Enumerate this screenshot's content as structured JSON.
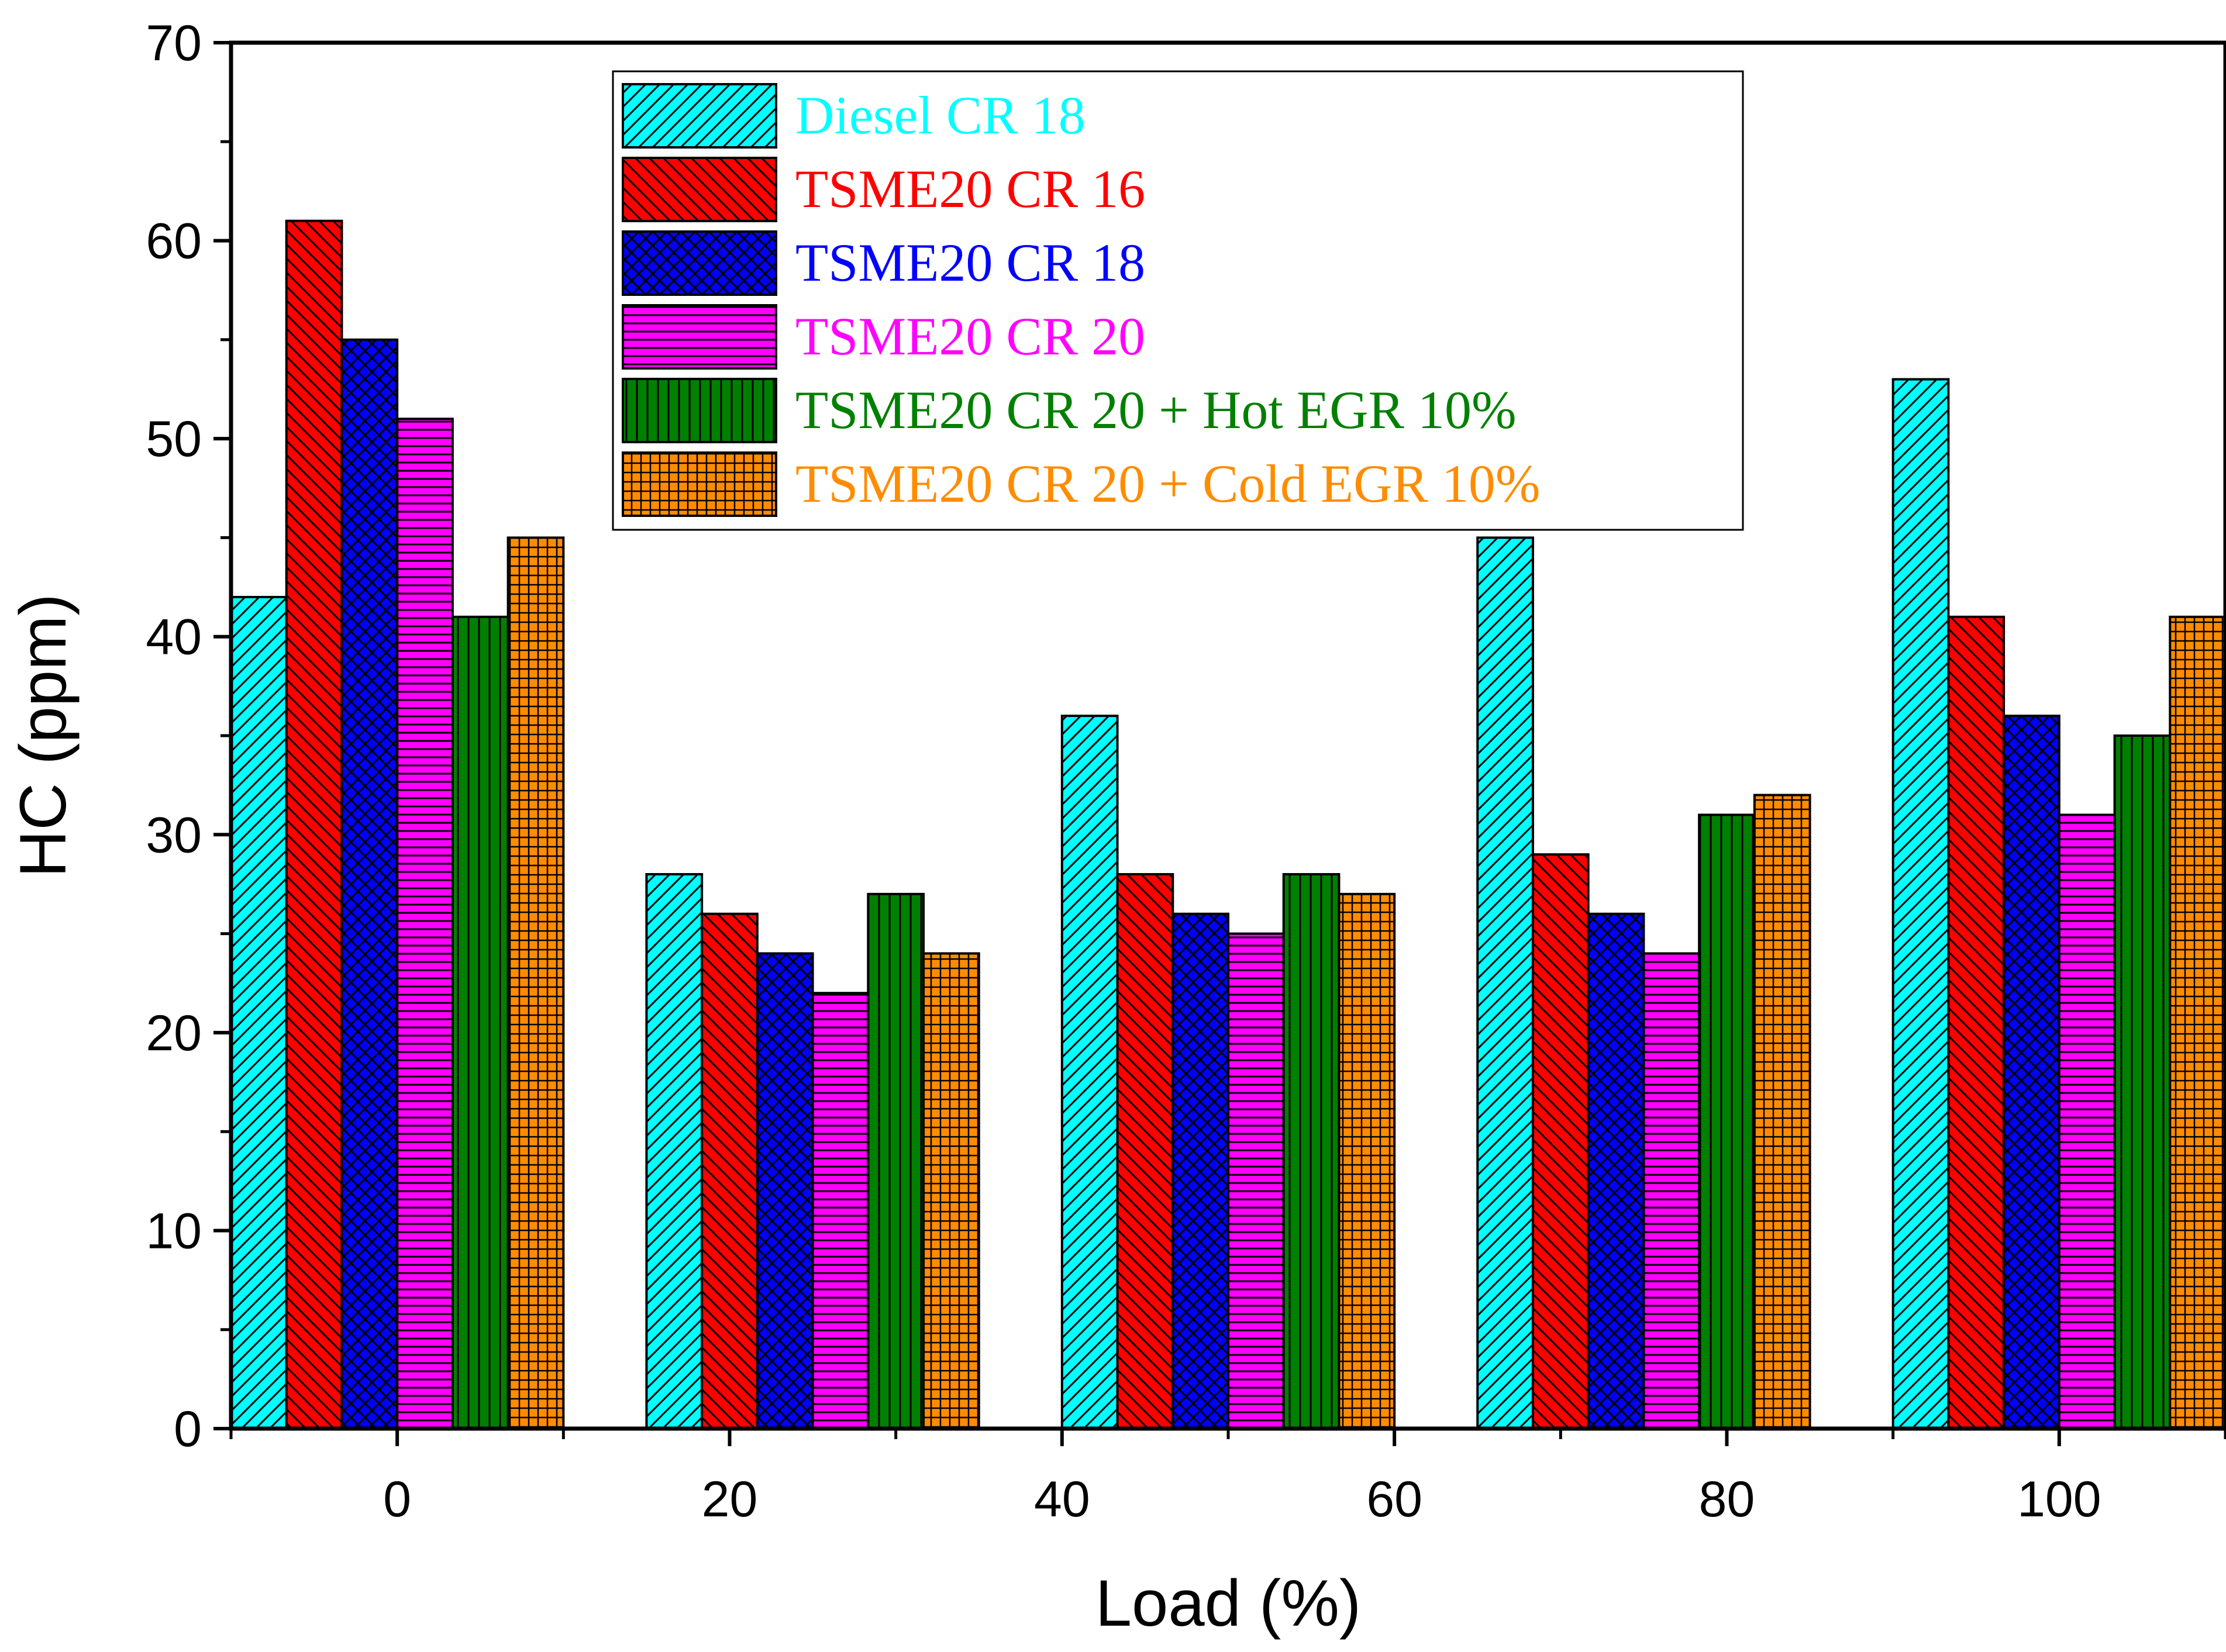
{
  "chart_data": {
    "type": "bar",
    "xlabel": "Load (%)",
    "ylabel": "HC (ppm)",
    "ylim": [
      0,
      70
    ],
    "yticks": [
      0,
      10,
      20,
      30,
      40,
      50,
      60,
      70
    ],
    "xlim": [
      -10,
      110
    ],
    "xticks": [
      0,
      20,
      40,
      60,
      80,
      100
    ],
    "categories": [
      0,
      25,
      50,
      75,
      100
    ],
    "legend_position": "top-right",
    "series": [
      {
        "name": "Diesel CR 18",
        "color": "#00ffff",
        "pattern": "diag-right",
        "values": [
          42,
          28,
          36,
          45,
          53
        ]
      },
      {
        "name": "TSME20 CR 16",
        "color": "#ff0000",
        "pattern": "diag-left",
        "values": [
          61,
          26,
          28,
          29,
          41
        ]
      },
      {
        "name": "TSME20 CR 18",
        "color": "#0000ff",
        "pattern": "crosshatch",
        "values": [
          55,
          24,
          26,
          26,
          36
        ]
      },
      {
        "name": "TSME20 CR 20",
        "color": "#ff00ff",
        "pattern": "horizontal",
        "values": [
          51,
          22,
          25,
          24,
          31
        ]
      },
      {
        "name": "TSME20 CR 20 + Hot EGR 10%",
        "color": "#008000",
        "pattern": "vertical",
        "values": [
          41,
          27,
          28,
          31,
          35
        ]
      },
      {
        "name": "TSME20 CR 20 + Cold EGR 10%",
        "color": "#ff8c00",
        "pattern": "grid",
        "values": [
          45,
          24,
          27,
          32,
          41
        ]
      }
    ]
  }
}
